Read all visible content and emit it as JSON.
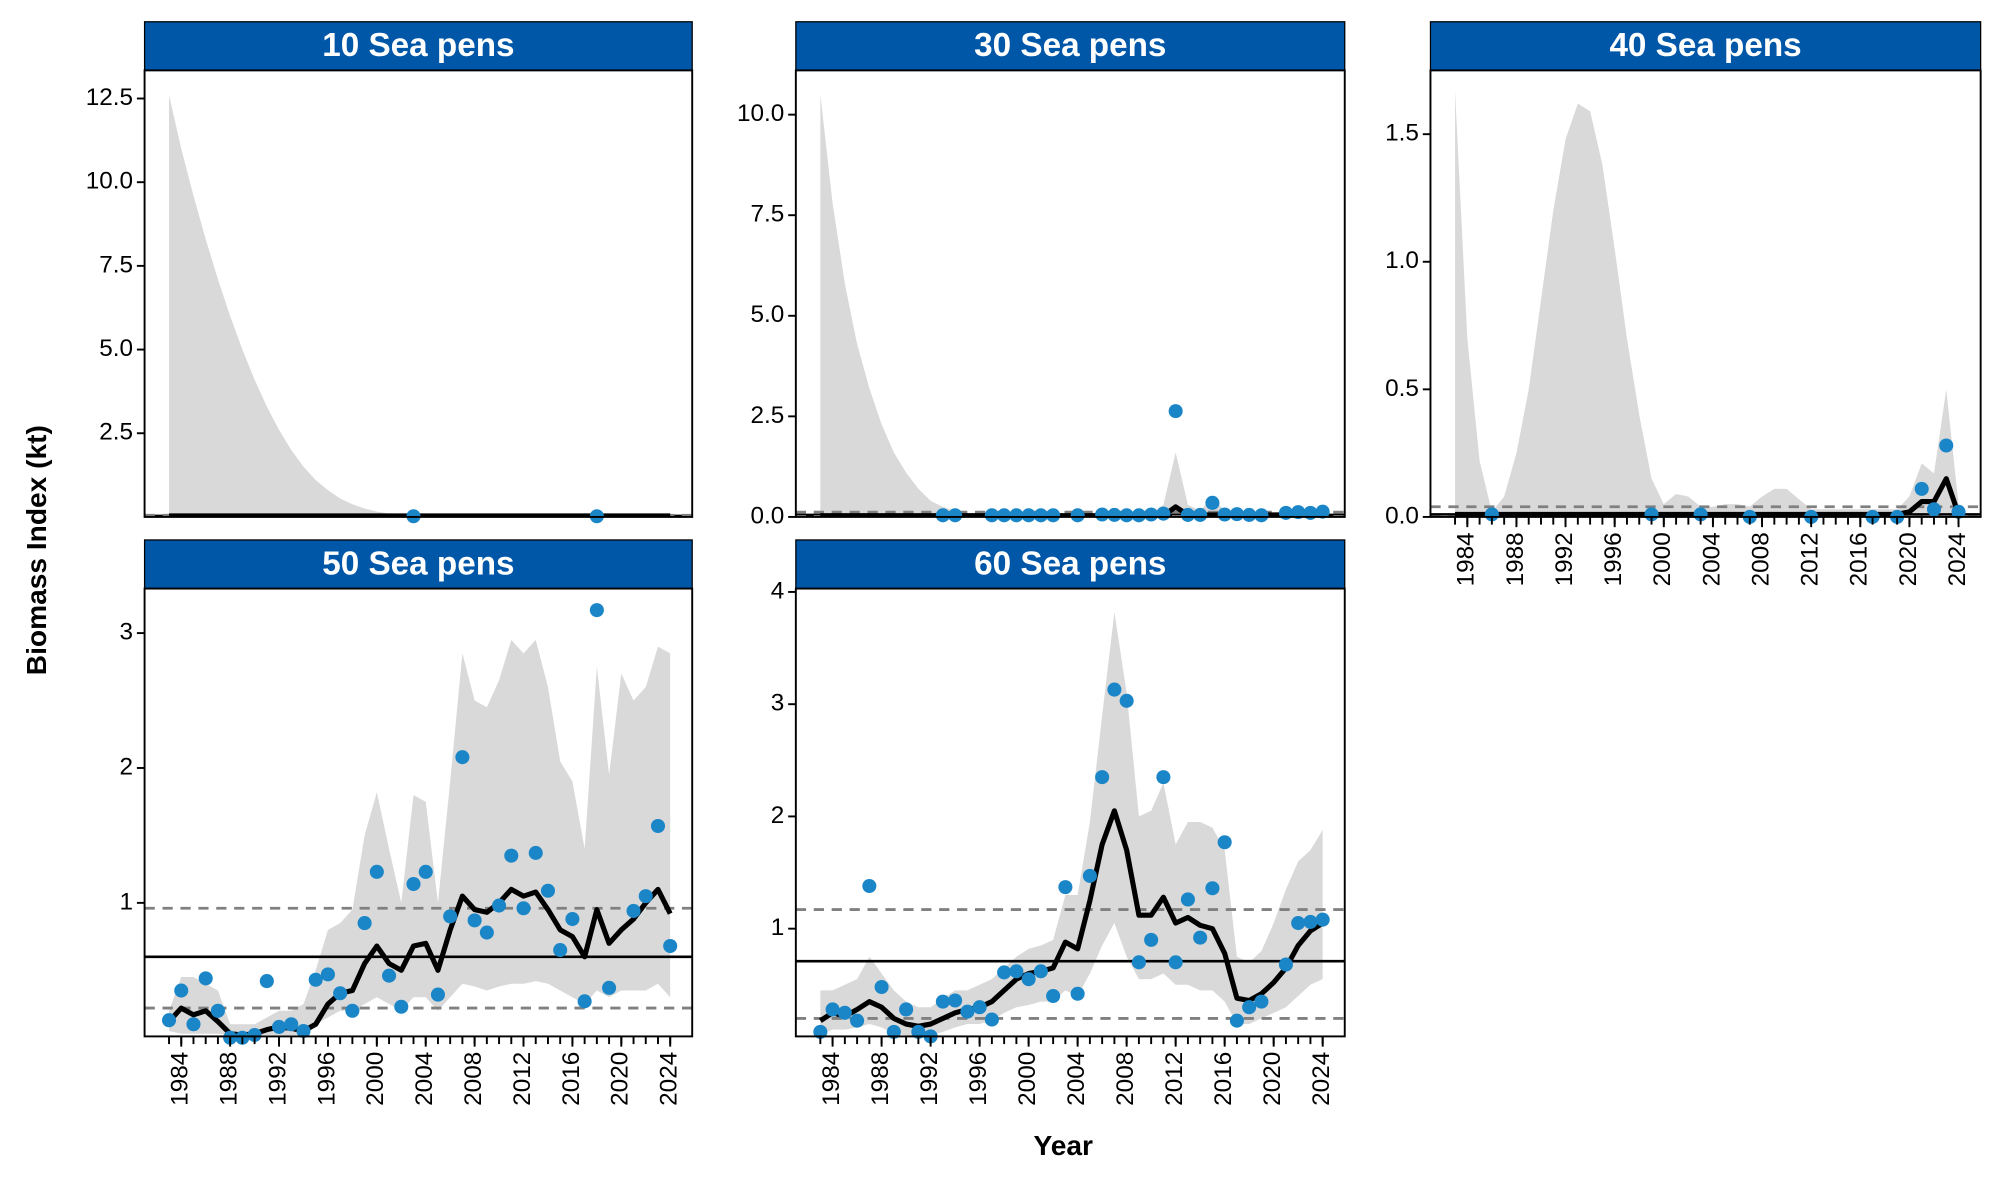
{
  "y_label": "Biomass Index (kt)",
  "x_label": "Year",
  "chart_data": [
    {
      "type": "ribbon-line",
      "title": "10 Sea pens",
      "strip_color": "#0057a8",
      "ribbon_color": "#d9d9d9",
      "line_color": "#000000",
      "point_color": "#1a86c8",
      "hline_color": "#808080",
      "x": [
        1983,
        1984,
        1985,
        1986,
        1987,
        1988,
        1989,
        1990,
        1991,
        1992,
        1993,
        1994,
        1995,
        1996,
        1997,
        1998,
        1999,
        2000,
        2001,
        2002,
        2003,
        2004,
        2005,
        2006,
        2007,
        2008,
        2009,
        2010,
        2011,
        2012,
        2013,
        2014,
        2015,
        2016,
        2017,
        2018,
        2019,
        2020,
        2021,
        2022,
        2023,
        2024
      ],
      "xlim": [
        1981,
        2025.8
      ],
      "ylim": [
        0,
        13.34
      ],
      "yticks": [
        2.5,
        {
          "value": 5,
          "label": "5.0"
        },
        7.5,
        {
          "value": 10,
          "label": "10.0"
        },
        12.5
      ],
      "ribbon_upper": [
        12.6,
        11,
        9.6,
        8.3,
        7.1,
        6.0,
        5.0,
        4.1,
        3.3,
        2.6,
        2.0,
        1.5,
        1.1,
        0.8,
        0.55,
        0.38,
        0.25,
        0.16,
        0.1,
        0.06,
        0.04,
        0.04,
        0.04,
        0.04,
        0.04,
        0.04,
        0.04,
        0.04,
        0.04,
        0.04,
        0.04,
        0.04,
        0.04,
        0.04,
        0.04,
        0.04,
        0.04,
        0.04,
        0.04,
        0.04,
        0.04,
        0.04
      ],
      "ribbon_lower": [
        0,
        0,
        0,
        0,
        0,
        0,
        0,
        0,
        0,
        0,
        0,
        0,
        0,
        0,
        0,
        0,
        0,
        0,
        0,
        0,
        0,
        0,
        0,
        0,
        0,
        0,
        0,
        0,
        0,
        0,
        0,
        0,
        0,
        0,
        0,
        0,
        0,
        0,
        0,
        0,
        0,
        0
      ],
      "trend": [
        0.03,
        0.03,
        0.03,
        0.03,
        0.03,
        0.03,
        0.03,
        0.03,
        0.03,
        0.03,
        0.03,
        0.03,
        0.03,
        0.03,
        0.03,
        0.03,
        0.03,
        0.03,
        0.03,
        0.03,
        0.03,
        0.03,
        0.03,
        0.03,
        0.03,
        0.03,
        0.03,
        0.03,
        0.03,
        0.03,
        0.03,
        0.03,
        0.03,
        0.03,
        0.03,
        0.03,
        0.03,
        0.03,
        0.03,
        0.03,
        0.03,
        0.03
      ],
      "points": [
        null,
        null,
        null,
        null,
        null,
        null,
        null,
        null,
        null,
        null,
        null,
        null,
        null,
        null,
        null,
        null,
        null,
        null,
        null,
        null,
        0.02,
        null,
        null,
        null,
        null,
        null,
        null,
        null,
        null,
        null,
        null,
        null,
        null,
        null,
        null,
        0.02,
        null,
        null,
        null,
        null,
        null,
        null
      ],
      "mean": 0.03,
      "upper_ref": 0.05,
      "lower_ref": 0.01
    },
    {
      "type": "ribbon-line",
      "title": "30 Sea pens",
      "strip_color": "#0057a8",
      "ribbon_color": "#d9d9d9",
      "line_color": "#000000",
      "point_color": "#1a86c8",
      "hline_color": "#808080",
      "x": [
        1983,
        1984,
        1985,
        1986,
        1987,
        1988,
        1989,
        1990,
        1991,
        1992,
        1993,
        1994,
        1995,
        1996,
        1997,
        1998,
        1999,
        2000,
        2001,
        2002,
        2003,
        2004,
        2005,
        2006,
        2007,
        2008,
        2009,
        2010,
        2011,
        2012,
        2013,
        2014,
        2015,
        2016,
        2017,
        2018,
        2019,
        2020,
        2021,
        2022,
        2023,
        2024
      ],
      "xlim": [
        1981,
        2025.8
      ],
      "ylim": [
        0,
        11.1
      ],
      "yticks": [
        {
          "value": 0,
          "label": "0.0"
        },
        2.5,
        {
          "value": 5,
          "label": "5.0"
        },
        7.5,
        {
          "value": 10,
          "label": "10.0"
        }
      ],
      "ribbon_upper": [
        10.5,
        7.8,
        5.8,
        4.3,
        3.2,
        2.3,
        1.6,
        1.1,
        0.7,
        0.4,
        0.25,
        0.15,
        0.1,
        0.08,
        0.08,
        0.08,
        0.08,
        0.08,
        0.08,
        0.08,
        0.08,
        0.08,
        0.08,
        0.08,
        0.08,
        0.08,
        0.08,
        0.1,
        0.3,
        1.6,
        0.3,
        0.15,
        0.5,
        0.15,
        0.1,
        0.1,
        0.1,
        0.1,
        0.15,
        0.15,
        0.15,
        0.2
      ],
      "ribbon_lower": [
        0,
        0,
        0,
        0,
        0,
        0,
        0,
        0,
        0,
        0,
        0,
        0,
        0,
        0,
        0,
        0,
        0,
        0,
        0,
        0,
        0,
        0,
        0,
        0,
        0,
        0,
        0,
        0,
        0,
        0,
        0,
        0,
        0,
        0,
        0,
        0,
        0,
        0,
        0,
        0,
        0,
        0
      ],
      "trend": [
        0.03,
        0.03,
        0.03,
        0.03,
        0.03,
        0.03,
        0.03,
        0.03,
        0.03,
        0.03,
        0.03,
        0.03,
        0.03,
        0.03,
        0.03,
        0.03,
        0.03,
        0.03,
        0.03,
        0.03,
        0.03,
        0.03,
        0.03,
        0.03,
        0.03,
        0.03,
        0.03,
        0.03,
        0.03,
        0.25,
        0.05,
        0.05,
        0.05,
        0.05,
        0.05,
        0.05,
        0.05,
        0.05,
        0.05,
        0.05,
        0.05,
        0.05
      ],
      "points": [
        null,
        null,
        null,
        null,
        null,
        null,
        null,
        null,
        null,
        null,
        0.04,
        0.04,
        null,
        null,
        0.04,
        0.04,
        0.04,
        0.04,
        0.04,
        0.04,
        null,
        0.04,
        null,
        0.06,
        0.05,
        0.04,
        0.04,
        0.06,
        0.08,
        2.63,
        0.05,
        0.05,
        0.35,
        0.06,
        0.07,
        0.05,
        0.04,
        null,
        0.1,
        0.12,
        0.1,
        0.13
      ],
      "mean": 0.05,
      "upper_ref": 0.12,
      "lower_ref": 0.01
    },
    {
      "type": "ribbon-line",
      "title": "40 Sea pens",
      "strip_color": "#0057a8",
      "ribbon_color": "#d9d9d9",
      "line_color": "#000000",
      "point_color": "#1a86c8",
      "hline_color": "#808080",
      "x": [
        1983,
        1984,
        1985,
        1986,
        1987,
        1988,
        1989,
        1990,
        1991,
        1992,
        1993,
        1994,
        1995,
        1996,
        1997,
        1998,
        1999,
        2000,
        2001,
        2002,
        2003,
        2004,
        2005,
        2006,
        2007,
        2008,
        2009,
        2010,
        2011,
        2012,
        2013,
        2014,
        2015,
        2016,
        2017,
        2018,
        2019,
        2020,
        2021,
        2022,
        2023,
        2024
      ],
      "xlim": [
        1981,
        2025.8
      ],
      "ylim": [
        0,
        1.75
      ],
      "xticks": [
        1984,
        1988,
        1992,
        1996,
        2000,
        2004,
        2008,
        2012,
        2016,
        2020,
        2024
      ],
      "yticks": [
        {
          "value": 0,
          "label": "0.0"
        },
        0.5,
        {
          "value": 1,
          "label": "1.0"
        },
        1.5
      ],
      "ribbon_upper": [
        1.67,
        0.7,
        0.22,
        0.02,
        0.08,
        0.25,
        0.5,
        0.85,
        1.2,
        1.48,
        1.62,
        1.59,
        1.38,
        1.05,
        0.7,
        0.4,
        0.15,
        0.05,
        0.09,
        0.08,
        0.04,
        0.04,
        0.05,
        0.05,
        0.04,
        0.08,
        0.11,
        0.11,
        0.07,
        0.03,
        0.03,
        0.03,
        0.03,
        0.03,
        0.03,
        0.03,
        0.03,
        0.08,
        0.21,
        0.17,
        0.5,
        0.05
      ],
      "ribbon_lower": [
        0,
        0,
        0,
        0,
        0,
        0,
        0,
        0,
        0,
        0,
        0,
        0,
        0,
        0,
        0,
        0,
        0,
        0,
        0,
        0,
        0,
        0,
        0,
        0,
        0,
        0,
        0,
        0,
        0,
        0,
        0,
        0,
        0,
        0,
        0,
        0,
        0,
        0,
        0,
        0,
        0,
        0
      ],
      "trend": [
        0.01,
        0.01,
        0.01,
        0.01,
        0.01,
        0.01,
        0.01,
        0.01,
        0.01,
        0.01,
        0.01,
        0.01,
        0.01,
        0.01,
        0.01,
        0.01,
        0.01,
        0.01,
        0.01,
        0.01,
        0.01,
        0.01,
        0.01,
        0.01,
        0.01,
        0.01,
        0.01,
        0.01,
        0.01,
        0.01,
        0.01,
        0.01,
        0.01,
        0.01,
        0.01,
        0.01,
        0.01,
        0.02,
        0.06,
        0.06,
        0.15,
        0.01
      ],
      "points": [
        null,
        null,
        null,
        0.01,
        null,
        null,
        null,
        null,
        null,
        null,
        null,
        null,
        null,
        null,
        null,
        null,
        0.01,
        null,
        null,
        null,
        0.01,
        null,
        null,
        null,
        0,
        null,
        null,
        null,
        null,
        0,
        null,
        null,
        null,
        null,
        0,
        null,
        0,
        null,
        0.11,
        0.03,
        0.28,
        0.02
      ],
      "mean": 0.01,
      "upper_ref": 0.04,
      "lower_ref": 0
    },
    {
      "type": "ribbon-line",
      "title": "50 Sea pens",
      "strip_color": "#0057a8",
      "ribbon_color": "#d9d9d9",
      "line_color": "#000000",
      "point_color": "#1a86c8",
      "hline_color": "#808080",
      "x": [
        1983,
        1984,
        1985,
        1986,
        1987,
        1988,
        1989,
        1990,
        1991,
        1992,
        1993,
        1994,
        1995,
        1996,
        1997,
        1998,
        1999,
        2000,
        2001,
        2002,
        2003,
        2004,
        2005,
        2006,
        2007,
        2008,
        2009,
        2010,
        2011,
        2012,
        2013,
        2014,
        2015,
        2016,
        2017,
        2018,
        2019,
        2020,
        2021,
        2022,
        2023,
        2024
      ],
      "xlim": [
        1981,
        2025.8
      ],
      "ylim": [
        0.01,
        3.33
      ],
      "xticks": [
        1984,
        1988,
        1992,
        1996,
        2000,
        2004,
        2008,
        2012,
        2016,
        2020,
        2024
      ],
      "yticks": [
        1,
        2,
        3
      ],
      "ribbon_upper": [
        0.2,
        0.45,
        0.45,
        0.4,
        0.35,
        0.1,
        0.1,
        0.1,
        0.15,
        0.2,
        0.2,
        0.25,
        0.5,
        0.8,
        0.85,
        0.95,
        1.5,
        1.82,
        1.4,
        1.0,
        1.8,
        1.75,
        1.0,
        1.9,
        2.85,
        2.5,
        2.45,
        2.65,
        2.95,
        2.85,
        2.95,
        2.6,
        2.05,
        1.9,
        1.4,
        2.75,
        1.95,
        2.7,
        2.5,
        2.6,
        2.9,
        2.85
      ],
      "ribbon_lower": [
        0.05,
        0.03,
        0.03,
        0.03,
        0.03,
        0.02,
        0.02,
        0.02,
        0.02,
        0.02,
        0.02,
        0.02,
        0.1,
        0.15,
        0.2,
        0.2,
        0.25,
        0.3,
        0.25,
        0.2,
        0.3,
        0.3,
        0.2,
        0.3,
        0.4,
        0.38,
        0.35,
        0.38,
        0.4,
        0.4,
        0.42,
        0.4,
        0.35,
        0.3,
        0.25,
        0.35,
        0.3,
        0.35,
        0.35,
        0.35,
        0.4,
        0.3
      ],
      "trend": [
        0.12,
        0.22,
        0.17,
        0.2,
        0.12,
        0.03,
        0.02,
        0.03,
        0.06,
        0.08,
        0.07,
        0.05,
        0.1,
        0.25,
        0.33,
        0.35,
        0.55,
        0.68,
        0.55,
        0.5,
        0.68,
        0.7,
        0.5,
        0.8,
        1.05,
        0.95,
        0.93,
        1.0,
        1.1,
        1.05,
        1.08,
        0.95,
        0.8,
        0.75,
        0.6,
        0.95,
        0.7,
        0.8,
        0.88,
        1.0,
        1.1,
        0.92
      ],
      "points": [
        0.13,
        0.35,
        0.1,
        0.44,
        0.2,
        0.0,
        0.0,
        0.02,
        0.42,
        0.08,
        0.1,
        0.05,
        0.43,
        0.47,
        0.33,
        0.2,
        0.85,
        1.23,
        0.46,
        0.23,
        1.14,
        1.23,
        0.32,
        0.9,
        2.08,
        0.87,
        0.78,
        0.98,
        1.35,
        0.96,
        1.37,
        1.09,
        0.65,
        0.88,
        0.27,
        3.17,
        0.37,
        null,
        0.94,
        1.05,
        1.57,
        0.68
      ],
      "mean": 0.6,
      "upper_ref": 0.96,
      "lower_ref": 0.22
    },
    {
      "type": "ribbon-line",
      "title": "60 Sea pens",
      "strip_color": "#0057a8",
      "ribbon_color": "#d9d9d9",
      "line_color": "#000000",
      "point_color": "#1a86c8",
      "hline_color": "#808080",
      "x": [
        1983,
        1984,
        1985,
        1986,
        1987,
        1988,
        1989,
        1990,
        1991,
        1992,
        1993,
        1994,
        1995,
        1996,
        1997,
        1998,
        1999,
        2000,
        2001,
        2002,
        2003,
        2004,
        2005,
        2006,
        2007,
        2008,
        2009,
        2010,
        2011,
        2012,
        2013,
        2014,
        2015,
        2016,
        2017,
        2018,
        2019,
        2020,
        2021,
        2022,
        2023,
        2024
      ],
      "xlim": [
        1981,
        2025.8
      ],
      "ylim": [
        0.04,
        4.03
      ],
      "xticks": [
        1984,
        1988,
        1992,
        1996,
        2000,
        2004,
        2008,
        2012,
        2016,
        2020,
        2024
      ],
      "yticks": [
        1,
        2,
        3,
        4
      ],
      "ribbon_upper": [
        0.45,
        0.45,
        0.5,
        0.55,
        0.75,
        0.6,
        0.45,
        0.35,
        0.3,
        0.3,
        0.38,
        0.45,
        0.45,
        0.5,
        0.55,
        0.65,
        0.75,
        0.82,
        0.85,
        0.9,
        1.3,
        1.3,
        1.95,
        2.9,
        3.82,
        3.1,
        2.0,
        2.05,
        2.3,
        1.75,
        1.95,
        1.95,
        1.9,
        1.7,
        0.75,
        0.7,
        0.8,
        1.05,
        1.35,
        1.6,
        1.7,
        1.88
      ],
      "ribbon_lower": [
        0.06,
        0.1,
        0.1,
        0.12,
        0.15,
        0.12,
        0.06,
        0.05,
        0.04,
        0.05,
        0.08,
        0.12,
        0.15,
        0.15,
        0.18,
        0.25,
        0.3,
        0.32,
        0.35,
        0.35,
        0.45,
        0.4,
        0.6,
        0.85,
        1.05,
        0.75,
        0.55,
        0.55,
        0.6,
        0.5,
        0.5,
        0.45,
        0.45,
        0.35,
        0.15,
        0.15,
        0.2,
        0.25,
        0.3,
        0.4,
        0.5,
        0.55
      ],
      "trend": [
        0.18,
        0.25,
        0.22,
        0.28,
        0.35,
        0.3,
        0.2,
        0.15,
        0.13,
        0.15,
        0.2,
        0.25,
        0.28,
        0.3,
        0.35,
        0.45,
        0.55,
        0.6,
        0.62,
        0.65,
        0.88,
        0.82,
        1.25,
        1.75,
        2.05,
        1.7,
        1.12,
        1.12,
        1.28,
        1.05,
        1.1,
        1.03,
        1.0,
        0.78,
        0.38,
        0.36,
        0.42,
        0.52,
        0.65,
        0.85,
        0.98,
        1.05
      ],
      "points": [
        0.08,
        0.28,
        0.25,
        0.18,
        1.38,
        0.48,
        0.08,
        0.28,
        0.08,
        0.04,
        0.35,
        0.36,
        0.26,
        0.3,
        0.19,
        0.61,
        0.62,
        0.55,
        0.62,
        0.4,
        1.37,
        0.42,
        1.47,
        2.35,
        3.13,
        3.03,
        0.7,
        0.9,
        2.35,
        0.7,
        1.26,
        0.92,
        1.36,
        1.77,
        0.18,
        0.3,
        0.35,
        null,
        0.68,
        1.05,
        1.06,
        1.08
      ],
      "mean": 0.71,
      "upper_ref": 1.17,
      "lower_ref": 0.2
    }
  ]
}
